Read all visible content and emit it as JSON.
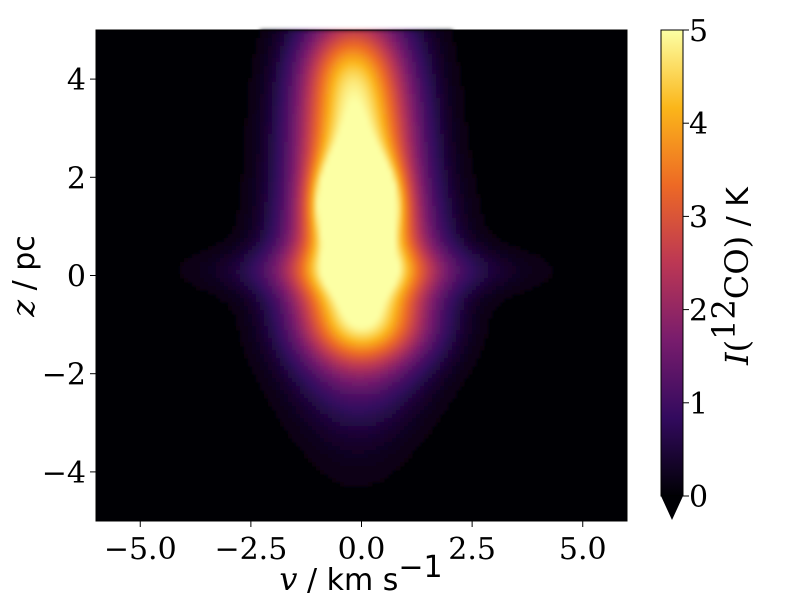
{
  "chart_data": {
    "type": "heatmap",
    "title": "",
    "xlabel": {
      "var": "v",
      "sep": " / ",
      "unit": "km s",
      "exp": "−1"
    },
    "ylabel": {
      "var": "z",
      "sep": " / ",
      "unit": "pc"
    },
    "xlim": [
      -6,
      6
    ],
    "ylim": [
      -5,
      5
    ],
    "x_ticks": [
      {
        "value": -5.0,
        "label": "−5.0"
      },
      {
        "value": -2.5,
        "label": "−2.5"
      },
      {
        "value": 0.0,
        "label": "0.0"
      },
      {
        "value": 2.5,
        "label": "2.5"
      },
      {
        "value": 5.0,
        "label": "5.0"
      }
    ],
    "y_ticks": [
      {
        "value": -4,
        "label": "−4"
      },
      {
        "value": -2,
        "label": "−2"
      },
      {
        "value": 0,
        "label": "0"
      },
      {
        "value": 2,
        "label": "2"
      },
      {
        "value": 4,
        "label": "4"
      }
    ],
    "colorbar": {
      "cmap": "inferno",
      "vmin": 0,
      "vmax": 5,
      "extend": "min",
      "label": {
        "var": "I",
        "open": "(",
        "iso": "12",
        "species": "CO",
        "close": ")",
        "sep": " / ",
        "unit": "K"
      },
      "ticks": [
        {
          "value": 0,
          "label": "0"
        },
        {
          "value": 1,
          "label": "1"
        },
        {
          "value": 2,
          "label": "2"
        },
        {
          "value": 3,
          "label": "3"
        },
        {
          "value": 4,
          "label": "4"
        },
        {
          "value": 5,
          "label": "5"
        }
      ],
      "colors": [
        "#000004",
        "#320a5e",
        "#781c6d",
        "#bc3754",
        "#ed6925",
        "#fbb61a",
        "#fcffa4"
      ]
    },
    "background_color": "#000004",
    "emission_components": [
      {
        "v": -0.1,
        "z": 1.5,
        "sigma_v": 0.55,
        "sigma_z": 0.55,
        "peak": 5.2
      },
      {
        "v": -0.1,
        "z": 2.0,
        "sigma_v": 0.9,
        "sigma_z": 2.4,
        "peak": 3.4
      },
      {
        "v": 0.0,
        "z": 0.0,
        "sigma_v": 1.1,
        "sigma_z": 1.3,
        "peak": 3.2
      },
      {
        "v": -0.2,
        "z": 3.2,
        "sigma_v": 0.9,
        "sigma_z": 1.1,
        "peak": 1.8
      },
      {
        "v": 0.1,
        "z": 0.1,
        "sigma_v": 2.0,
        "sigma_z": 0.35,
        "peak": 1.1
      },
      {
        "v": -0.3,
        "z": 4.3,
        "sigma_v": 0.7,
        "sigma_z": 0.6,
        "peak": 1.0
      },
      {
        "v": 0.2,
        "z": -1.1,
        "sigma_v": 1.0,
        "sigma_z": 0.5,
        "peak": 1.2
      }
    ]
  }
}
